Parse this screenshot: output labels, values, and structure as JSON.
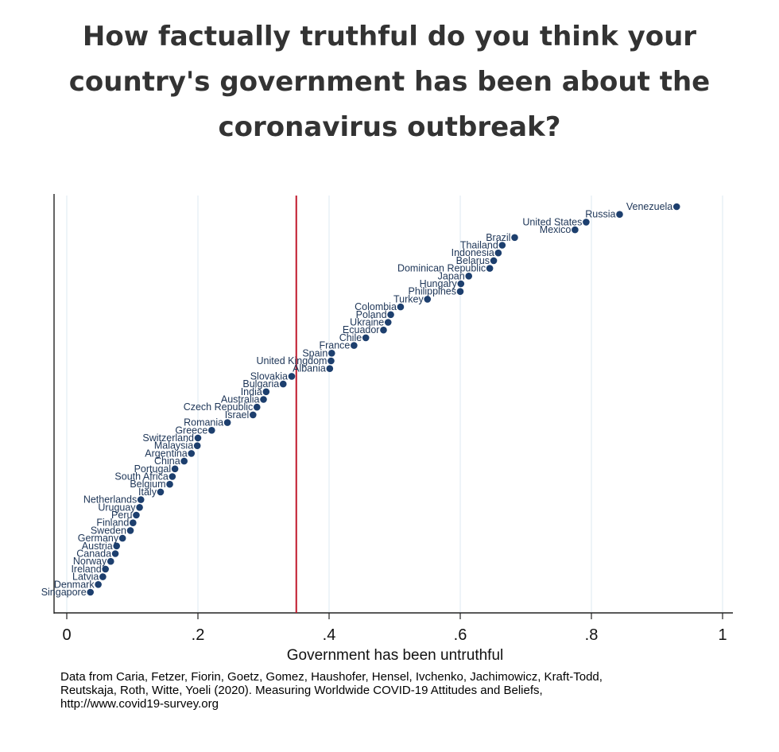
{
  "title": "How factually truthful do you think your country's government has been about the coronavirus outbreak?",
  "chart_data": {
    "type": "scatter",
    "title": "How factually truthful do you think your country's government has been about the coronavirus outbreak?",
    "xlabel": "Government has been untruthful",
    "ylabel": "",
    "xlim": [
      0,
      1
    ],
    "xticks": [
      0,
      0.2,
      0.4,
      0.6,
      0.8,
      1
    ],
    "xtick_labels": [
      "0",
      ".2",
      ".4",
      ".6",
      ".8",
      "1"
    ],
    "reference_line_x": 0.35,
    "reference_line_color": "#c0182b",
    "marker_color": "#1d3f6e",
    "grid": "vertical",
    "points": [
      {
        "label": "Venezuela",
        "x": 0.93
      },
      {
        "label": "Russia",
        "x": 0.843
      },
      {
        "label": "United States",
        "x": 0.792
      },
      {
        "label": "Mexico",
        "x": 0.775
      },
      {
        "label": "Brazil",
        "x": 0.683
      },
      {
        "label": "Thailand",
        "x": 0.664
      },
      {
        "label": "Indonesia",
        "x": 0.658
      },
      {
        "label": "Belarus",
        "x": 0.651
      },
      {
        "label": "Dominican Republic",
        "x": 0.645
      },
      {
        "label": "Japan",
        "x": 0.613
      },
      {
        "label": "Hungary",
        "x": 0.601
      },
      {
        "label": "Philippines",
        "x": 0.6
      },
      {
        "label": "Turkey",
        "x": 0.55
      },
      {
        "label": "Colombia",
        "x": 0.509
      },
      {
        "label": "Poland",
        "x": 0.494
      },
      {
        "label": "Ukraine",
        "x": 0.49
      },
      {
        "label": "Ecuador",
        "x": 0.483
      },
      {
        "label": "Chile",
        "x": 0.456
      },
      {
        "label": "France",
        "x": 0.438
      },
      {
        "label": "Spain",
        "x": 0.404
      },
      {
        "label": "United Kingdom",
        "x": 0.403
      },
      {
        "label": "Albania",
        "x": 0.401
      },
      {
        "label": "Slovakia",
        "x": 0.343
      },
      {
        "label": "Bulgaria",
        "x": 0.33
      },
      {
        "label": "India",
        "x": 0.304
      },
      {
        "label": "Australia",
        "x": 0.3
      },
      {
        "label": "Czech Republic",
        "x": 0.29
      },
      {
        "label": "Israel",
        "x": 0.284
      },
      {
        "label": "Romania",
        "x": 0.245
      },
      {
        "label": "Greece",
        "x": 0.221
      },
      {
        "label": "Switzerland",
        "x": 0.2
      },
      {
        "label": "Malaysia",
        "x": 0.199
      },
      {
        "label": "Argentina",
        "x": 0.19
      },
      {
        "label": "China",
        "x": 0.179
      },
      {
        "label": "Portugal",
        "x": 0.165
      },
      {
        "label": "South Africa",
        "x": 0.161
      },
      {
        "label": "Belgium",
        "x": 0.157
      },
      {
        "label": "Italy",
        "x": 0.143
      },
      {
        "label": "Netherlands",
        "x": 0.113
      },
      {
        "label": "Uruguay",
        "x": 0.111
      },
      {
        "label": "Peru",
        "x": 0.106
      },
      {
        "label": "Finland",
        "x": 0.101
      },
      {
        "label": "Sweden",
        "x": 0.097
      },
      {
        "label": "Germany",
        "x": 0.085
      },
      {
        "label": "Austria",
        "x": 0.076
      },
      {
        "label": "Canada",
        "x": 0.074
      },
      {
        "label": "Norway",
        "x": 0.067
      },
      {
        "label": "Ireland",
        "x": 0.059
      },
      {
        "label": "Latvia",
        "x": 0.055
      },
      {
        "label": "Denmark",
        "x": 0.048
      },
      {
        "label": "Singapore",
        "x": 0.036
      }
    ]
  },
  "note": {
    "line1": "Data from Caria, Fetzer, Fiorin, Goetz, Gomez, Haushofer, Hensel, Ivchenko, Jachimowicz, Kraft-Todd,",
    "line2": "Reutskaja, Roth, Witte, Yoeli (2020). Measuring Worldwide COVID-19 Attitudes and Beliefs,",
    "line3": "http://www.covid19-survey.org"
  }
}
